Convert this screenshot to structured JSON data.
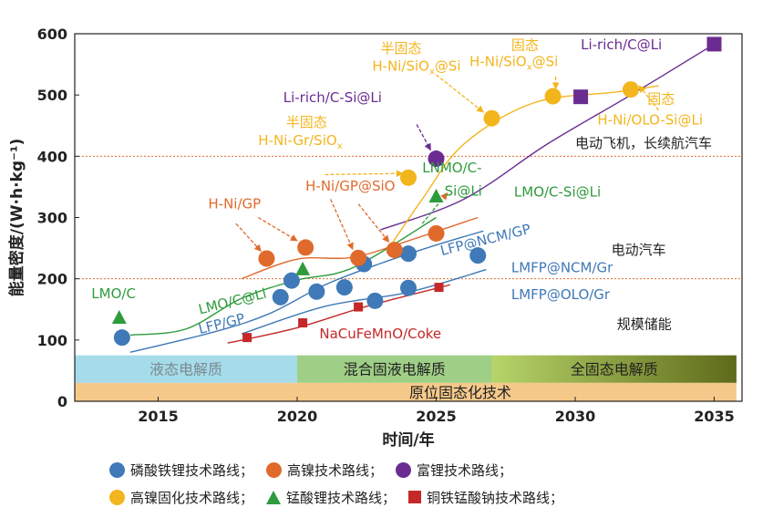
{
  "chart_data": {
    "type": "scatter",
    "xlabel": "时间/年",
    "ylabel": "能量密度/(W·h·kg⁻¹)",
    "xlim": [
      2012,
      2036
    ],
    "ylim": [
      0,
      600
    ],
    "xticks": [
      "2015",
      "2020",
      "2025",
      "2030",
      "2035"
    ],
    "yticks": [
      "0",
      "100",
      "200",
      "300",
      "400",
      "500",
      "600"
    ],
    "xtick_values": [
      2015,
      2020,
      2025,
      2030,
      2035
    ],
    "ytick_values": [
      0,
      100,
      200,
      300,
      400,
      500,
      600
    ],
    "reference_lines": [
      {
        "y": 200,
        "label": "电动汽车",
        "color": "#e06a2c"
      },
      {
        "y": 400,
        "label": "电动飞机，长续航汽车",
        "color": "#e06a2c"
      }
    ],
    "application_labels": [
      {
        "text": "规模储能",
        "x": 2031.5,
        "y": 118
      }
    ],
    "bands": [
      {
        "label": "液态电解质",
        "x0": 2012,
        "x1": 2020,
        "y0": 30,
        "y1": 75,
        "color": "#a6dcea",
        "text_color": "#7a8a90"
      },
      {
        "label": "混合固液电解质",
        "x0": 2020,
        "x1": 2027,
        "y0": 30,
        "y1": 75,
        "color": "#9fcf86",
        "text_color": "#222222"
      },
      {
        "label": "全固态电解质",
        "x0": 2027,
        "x1": 2035.8,
        "y0": 30,
        "y1": 75,
        "color": "#6b7a1e",
        "text_color": "#222222"
      },
      {
        "label": "原位固态化技术",
        "x0": 2012,
        "x1": 2035.8,
        "y0": 0,
        "y1": 30,
        "color": "#f5c98a",
        "text_color": "#222222"
      }
    ],
    "series": [
      {
        "name": "磷酸铁锂技术路线",
        "marker": "circle",
        "color": "#3f79b7",
        "points": [
          [
            2013.7,
            104
          ],
          [
            2019.4,
            170
          ],
          [
            2019.8,
            197
          ],
          [
            2020.7,
            179
          ],
          [
            2021.7,
            186
          ],
          [
            2022.4,
            224
          ],
          [
            2022.8,
            164
          ],
          [
            2024.0,
            241
          ],
          [
            2024.0,
            185
          ],
          [
            2026.5,
            238
          ]
        ]
      },
      {
        "name": "高镍技术路线",
        "marker": "circle",
        "color": "#e06a2c",
        "points": [
          [
            2018.9,
            233
          ],
          [
            2020.3,
            251
          ],
          [
            2022.2,
            234
          ],
          [
            2023.5,
            247
          ],
          [
            2025.0,
            274
          ]
        ]
      },
      {
        "name": "富锂技术路线",
        "marker": "circle",
        "color": "#6a2c91",
        "points": [
          [
            2025.0,
            396
          ]
        ]
      },
      {
        "name": "富锂技术路线",
        "marker": "square",
        "color": "#6a2c91",
        "points": [
          [
            2030.2,
            497
          ],
          [
            2035.0,
            583
          ]
        ]
      },
      {
        "name": "高镍固化技术路线",
        "marker": "circle",
        "color": "#f3b51c",
        "points": [
          [
            2024.0,
            365
          ],
          [
            2027.0,
            462
          ],
          [
            2029.2,
            498
          ],
          [
            2032.0,
            509
          ]
        ]
      },
      {
        "name": "锰酸锂技术路线",
        "marker": "triangle",
        "color": "#2e9b3c",
        "points": [
          [
            2013.6,
            137
          ],
          [
            2020.2,
            216
          ],
          [
            2025.0,
            335
          ]
        ]
      },
      {
        "name": "铜铁锰酸钠技术路线",
        "marker": "square",
        "color": "#c42828",
        "points": [
          [
            2018.2,
            104
          ],
          [
            2020.2,
            128
          ],
          [
            2022.2,
            154
          ],
          [
            2025.1,
            186
          ]
        ]
      }
    ],
    "trend_lines": [
      {
        "color": "#6a2c91",
        "points": [
          [
            2023.0,
            280
          ],
          [
            2026.0,
            330
          ],
          [
            2029.0,
            420
          ],
          [
            2032.0,
            500
          ],
          [
            2035.0,
            583
          ]
        ]
      },
      {
        "color": "#f3b51c",
        "points": [
          [
            2023.3,
            250
          ],
          [
            2024.5,
            330
          ],
          [
            2026.0,
            420
          ],
          [
            2028.5,
            487
          ],
          [
            2031.5,
            505
          ],
          [
            2033.0,
            515
          ]
        ]
      },
      {
        "color": "#2e9b3c",
        "points": [
          [
            2014.0,
            108
          ],
          [
            2016.0,
            118
          ],
          [
            2018.0,
            168
          ],
          [
            2020.0,
            198
          ],
          [
            2022.0,
            218
          ],
          [
            2025.0,
            300
          ]
        ]
      },
      {
        "color": "#e06a2c",
        "points": [
          [
            2018.0,
            200
          ],
          [
            2020.0,
            232
          ],
          [
            2022.0,
            235
          ],
          [
            2024.0,
            262
          ],
          [
            2026.5,
            300
          ]
        ]
      },
      {
        "color": "#3f79b7",
        "points": [
          [
            2014.0,
            80
          ],
          [
            2017.0,
            113
          ],
          [
            2019.0,
            143
          ],
          [
            2021.0,
            190
          ],
          [
            2023.0,
            225
          ],
          [
            2025.0,
            255
          ],
          [
            2026.7,
            278
          ]
        ]
      },
      {
        "color": "#3f79b7",
        "points": [
          [
            2018.0,
            110
          ],
          [
            2021.0,
            155
          ],
          [
            2024.0,
            178
          ],
          [
            2026.8,
            215
          ]
        ]
      },
      {
        "color": "#c42828",
        "points": [
          [
            2017.5,
            95
          ],
          [
            2020.0,
            120
          ],
          [
            2022.5,
            155
          ],
          [
            2025.5,
            190
          ]
        ]
      }
    ],
    "annotations": [
      {
        "text": "LMO/C",
        "color": "#2e9b3c",
        "x": 2012.6,
        "y": 168
      },
      {
        "text": "LMO/C@Li",
        "color": "#2e9b3c",
        "x": 2016.5,
        "y": 142,
        "rotate": -14
      },
      {
        "text": "LFP/GP",
        "color": "#3f79b7",
        "x": 2016.5,
        "y": 110,
        "rotate": -14
      },
      {
        "text": "H-Ni/GP",
        "color": "#e06a2c",
        "x": 2016.8,
        "y": 315
      },
      {
        "text": "H-Ni/GP@SiO",
        "color": "#e06a2c",
        "x": 2020.3,
        "y": 344
      },
      {
        "text": "NaCuFeMnO/Coke",
        "color": "#c42828",
        "x": 2020.8,
        "y": 103
      },
      {
        "text": "LNMO/C-",
        "color": "#2e9b3c",
        "x": 2024.5,
        "y": 374
      },
      {
        "text": "Si@Li",
        "color": "#2e9b3c",
        "x": 2025.3,
        "y": 336
      },
      {
        "text": "LMO/C-Si@Li",
        "color": "#2e9b3c",
        "x": 2027.8,
        "y": 334
      },
      {
        "text": "LFP@NCM/GP",
        "color": "#3f79b7",
        "x": 2025.2,
        "y": 238,
        "rotate": -14
      },
      {
        "text": "LMFP@NCM/Gr",
        "color": "#3f79b7",
        "x": 2027.7,
        "y": 211
      },
      {
        "text": "LMFP@OLO/Gr",
        "color": "#3f79b7",
        "x": 2027.7,
        "y": 167
      },
      {
        "text": "电动汽车",
        "color": "#222222",
        "x": 2031.3,
        "y": 240
      },
      {
        "text": "电动飞机，长续航汽车",
        "color": "#222222",
        "x": 2030.0,
        "y": 414
      },
      {
        "text": "半固态",
        "color": "#f3b51c",
        "x": 2019.6,
        "y": 448
      },
      {
        "text": "H-Ni-Gr/SiOx",
        "color": "#f3b51c",
        "x": 2018.6,
        "y": 418
      },
      {
        "text": "Li-rich/C-Si@Li",
        "color": "#6a2c91",
        "x": 2019.5,
        "y": 488
      },
      {
        "text": "半固态",
        "color": "#f3b51c",
        "x": 2023.0,
        "y": 569
      },
      {
        "text": "H-Ni/SiOx@Si",
        "color": "#f3b51c",
        "x": 2022.7,
        "y": 540
      },
      {
        "text": "固态",
        "color": "#f3b51c",
        "x": 2027.7,
        "y": 574
      },
      {
        "text": "H-Ni/SiOx@Si",
        "color": "#f3b51c",
        "x": 2026.2,
        "y": 547
      },
      {
        "text": "Li-rich/C@Li",
        "color": "#6a2c91",
        "x": 2030.2,
        "y": 575
      },
      {
        "text": "固态",
        "color": "#f3b51c",
        "x": 2032.6,
        "y": 486
      },
      {
        "text": "H-Ni/OLO-Si@Li",
        "color": "#f3b51c",
        "x": 2030.8,
        "y": 452
      }
    ]
  },
  "legend": [
    [
      {
        "label": "磷酸铁锂技术路线；",
        "marker": "circle",
        "color": "#3f79b7"
      },
      {
        "label": "高镍技术路线；",
        "marker": "circle",
        "color": "#e06a2c"
      },
      {
        "label": "富锂技术路线；",
        "marker": "circle",
        "color": "#6a2c91"
      }
    ],
    [
      {
        "label": "高镍固化技术路线；",
        "marker": "circle",
        "color": "#f3b51c"
      },
      {
        "label": "锰酸锂技术路线；",
        "marker": "triangle",
        "color": "#2e9b3c"
      },
      {
        "label": "铜铁锰酸钠技术路线；",
        "marker": "square",
        "color": "#c42828"
      }
    ]
  ]
}
